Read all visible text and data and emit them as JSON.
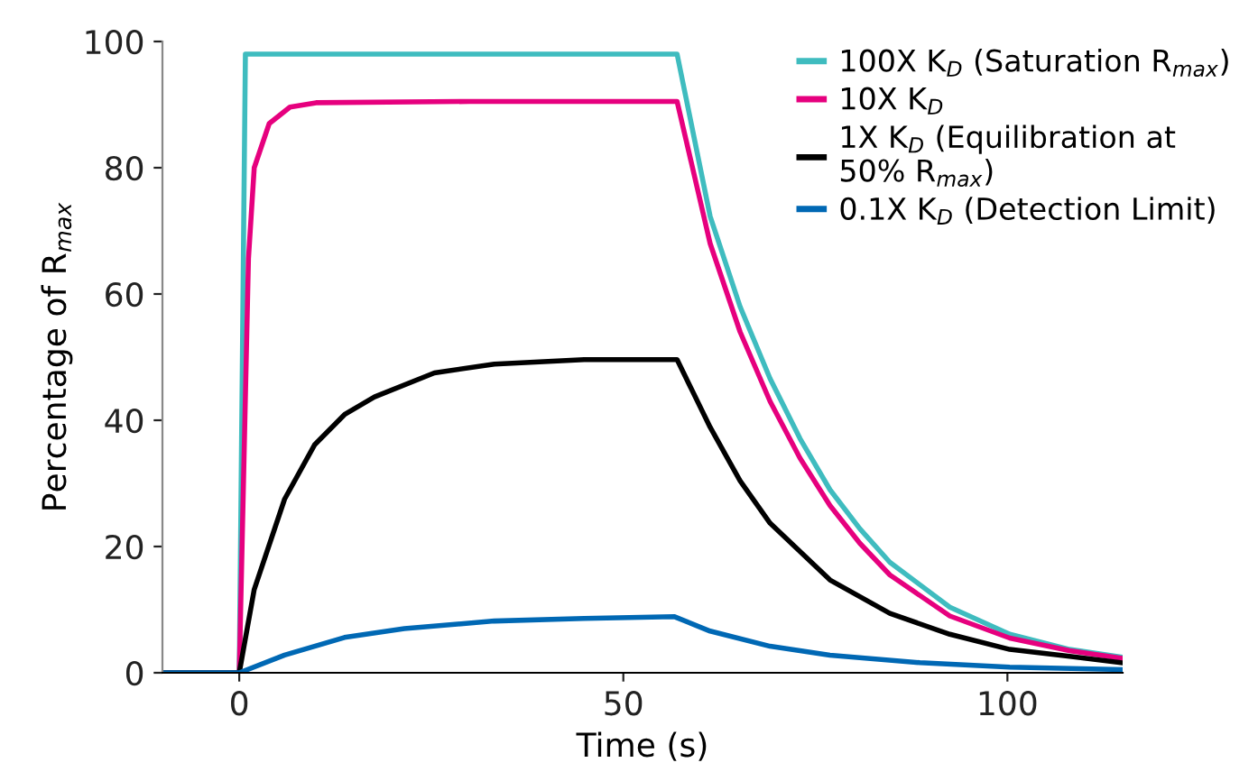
{
  "chart_data": {
    "type": "line",
    "xlabel": "Time (s)",
    "ylabel": "Percentage of R$_{max}$",
    "xlim": [
      -10,
      115
    ],
    "ylim": [
      0,
      100
    ],
    "xticks": [
      0,
      50,
      100
    ],
    "yticks": [
      0,
      20,
      40,
      60,
      80,
      100
    ],
    "grid": false,
    "legend": "top right",
    "marker": "none",
    "line_style": "solid",
    "series": [
      {
        "name": "100X K$_{D}$ (Saturation R$_{max}$)",
        "color": "#3fbcbf",
        "x": [
          -10,
          0,
          0.8,
          10,
          30,
          57,
          61.3,
          65.2,
          69.1,
          73,
          76.9,
          80.8,
          84.7,
          92.5,
          100.3,
          108.1,
          114.8
        ],
        "values": [
          0,
          0,
          98,
          98,
          98,
          98,
          72.3,
          58,
          46.6,
          37.1,
          29,
          22.8,
          17.5,
          10.4,
          6.1,
          3.7,
          2.5
        ]
      },
      {
        "name": "10X K$_{D}$",
        "color": "#e6007e",
        "x": [
          -10,
          0,
          1.2,
          1.95,
          3.9,
          6.6,
          10,
          30,
          57,
          61.3,
          65.2,
          69.1,
          73,
          76.9,
          80.8,
          84.7,
          92.5,
          100.3,
          108.1,
          114.8
        ],
        "values": [
          0,
          0,
          65.6,
          80,
          87,
          89.6,
          90.3,
          90.5,
          90.5,
          68,
          54,
          43,
          34,
          26.5,
          20.5,
          15.5,
          9,
          5.5,
          3.5,
          2.3
        ]
      },
      {
        "name": "1X K$_{D}$ (Equilibration at\n50% R$_{max}$)",
        "color": "#000000",
        "x": [
          -10,
          0,
          1.95,
          5.9,
          9.8,
          13.7,
          17.6,
          25.4,
          33.2,
          44.9,
          57,
          61.3,
          65.2,
          69.1,
          76.9,
          84.7,
          92.5,
          100.3,
          108.1,
          114.8
        ],
        "values": [
          0,
          0,
          13.2,
          27.5,
          36.1,
          40.9,
          43.7,
          47.5,
          48.9,
          49.6,
          49.6,
          38.9,
          30.4,
          23.7,
          14.7,
          9.4,
          6.1,
          3.7,
          2.6,
          1.6
        ]
      },
      {
        "name": "0.1X K$_{D}$ (Detection Limit)",
        "color": "#0068b4",
        "x": [
          -10,
          0,
          5.9,
          13.7,
          21.5,
          33.2,
          44.9,
          56.6,
          61.3,
          69.1,
          76.9,
          88.6,
          100.3,
          114.8
        ],
        "values": [
          0,
          0,
          2.8,
          5.6,
          7.0,
          8.2,
          8.6,
          8.9,
          6.6,
          4.2,
          2.8,
          1.6,
          0.9,
          0.5
        ]
      }
    ]
  }
}
